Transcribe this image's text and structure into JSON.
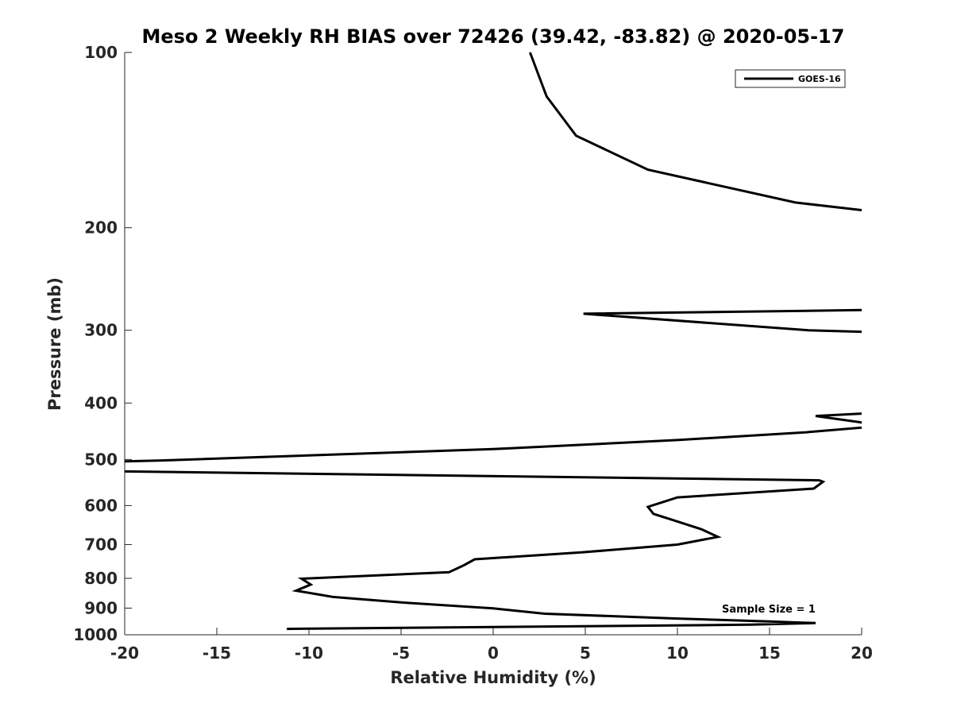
{
  "chart_data": {
    "type": "line",
    "title": "Meso 2 Weekly RH BIAS over 72426 (39.42, -83.82) @ 2020-05-17",
    "xlabel": "Relative Humidity (%)",
    "ylabel": "Pressure (mb)",
    "xlim": [
      -20,
      20
    ],
    "ylim": [
      100,
      1000
    ],
    "y_scale": "log",
    "y_reversed": true,
    "x_ticks": [
      -20,
      -15,
      -10,
      -5,
      0,
      5,
      10,
      15,
      20
    ],
    "x_tick_labels": [
      "-20",
      "-15",
      "-10",
      "-5",
      "0",
      "5",
      "10",
      "15",
      "20"
    ],
    "y_ticks": [
      100,
      200,
      300,
      400,
      500,
      600,
      700,
      800,
      900,
      1000
    ],
    "y_tick_labels": [
      "100",
      "200",
      "300",
      "400",
      "500",
      "600",
      "700",
      "800",
      "900",
      "1000"
    ],
    "grid": false,
    "legend": {
      "location": "top-right",
      "entries": [
        "GOES-16"
      ]
    },
    "annotation": "Sample Size = 1",
    "line_color": "#000000",
    "series": [
      {
        "name": "GOES-16",
        "points": [
          [
            2.0,
            100
          ],
          [
            2.9,
            119
          ],
          [
            4.5,
            139
          ],
          [
            8.4,
            159
          ],
          [
            16.4,
            181
          ],
          [
            20.3,
            187
          ],
          [
            null,
            null
          ],
          [
            20.0,
            277
          ],
          [
            4.9,
            281
          ],
          [
            17.1,
            300
          ],
          [
            20.3,
            302
          ],
          [
            null,
            null
          ],
          [
            20.0,
            417
          ],
          [
            17.5,
            421
          ],
          [
            20.0,
            432
          ],
          [
            20.3,
            440
          ],
          [
            17.0,
            449
          ],
          [
            10.0,
            463
          ],
          [
            0.0,
            480
          ],
          [
            -18.0,
            502
          ],
          [
            -20.3,
            504
          ],
          [
            null,
            null
          ],
          [
            -20.3,
            524
          ],
          [
            17.7,
            543
          ],
          [
            17.9,
            546
          ],
          [
            17.4,
            561
          ],
          [
            10.0,
            581
          ],
          [
            8.4,
            603
          ],
          [
            8.7,
            620
          ],
          [
            10.0,
            639
          ],
          [
            11.3,
            659
          ],
          [
            12.2,
            679
          ],
          [
            10.0,
            700
          ],
          [
            4.8,
            722
          ],
          [
            -1.0,
            742
          ],
          [
            -1.6,
            760
          ],
          [
            -2.4,
            781
          ],
          [
            -10.4,
            801
          ],
          [
            -9.9,
            820
          ],
          [
            -10.7,
            840
          ],
          [
            -8.7,
            861
          ],
          [
            -5.0,
            880
          ],
          [
            0.0,
            901
          ],
          [
            2.8,
            920
          ],
          [
            10.0,
            938
          ],
          [
            15.0,
            949
          ],
          [
            17.5,
            955
          ],
          [
            14.0,
            961
          ],
          [
            0.0,
            970
          ],
          [
            -11.2,
            977
          ]
        ]
      }
    ]
  }
}
